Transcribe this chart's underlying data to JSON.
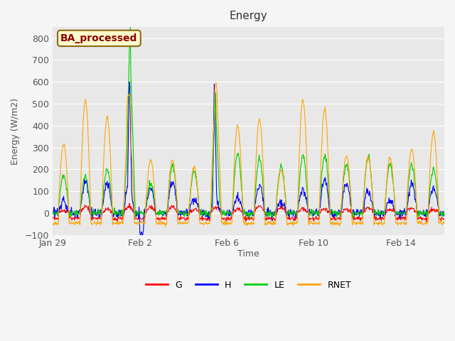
{
  "title": "Energy",
  "xlabel": "Time",
  "ylabel": "Energy (W/m2)",
  "ylim": [
    -100,
    850
  ],
  "yticks": [
    -100,
    0,
    100,
    200,
    300,
    400,
    500,
    600,
    700,
    800
  ],
  "colors": {
    "G": "#ff0000",
    "H": "#0000ff",
    "LE": "#00cc00",
    "RNET": "#ffa500"
  },
  "fig_bg_color": "#f5f5f5",
  "plot_bg_color": "#e8e8e8",
  "grid_color": "#ffffff",
  "watermark": "BA_processed",
  "watermark_color": "#8b0000",
  "watermark_bg": "#ffffcc",
  "watermark_edge": "#8b6914",
  "x_tick_labels": [
    "Jan 29",
    "Feb 2",
    "Feb 6",
    "Feb 10",
    "Feb 14"
  ],
  "xtick_positions": [
    0,
    4,
    8,
    12,
    16
  ],
  "n_days": 18,
  "seed": 42
}
